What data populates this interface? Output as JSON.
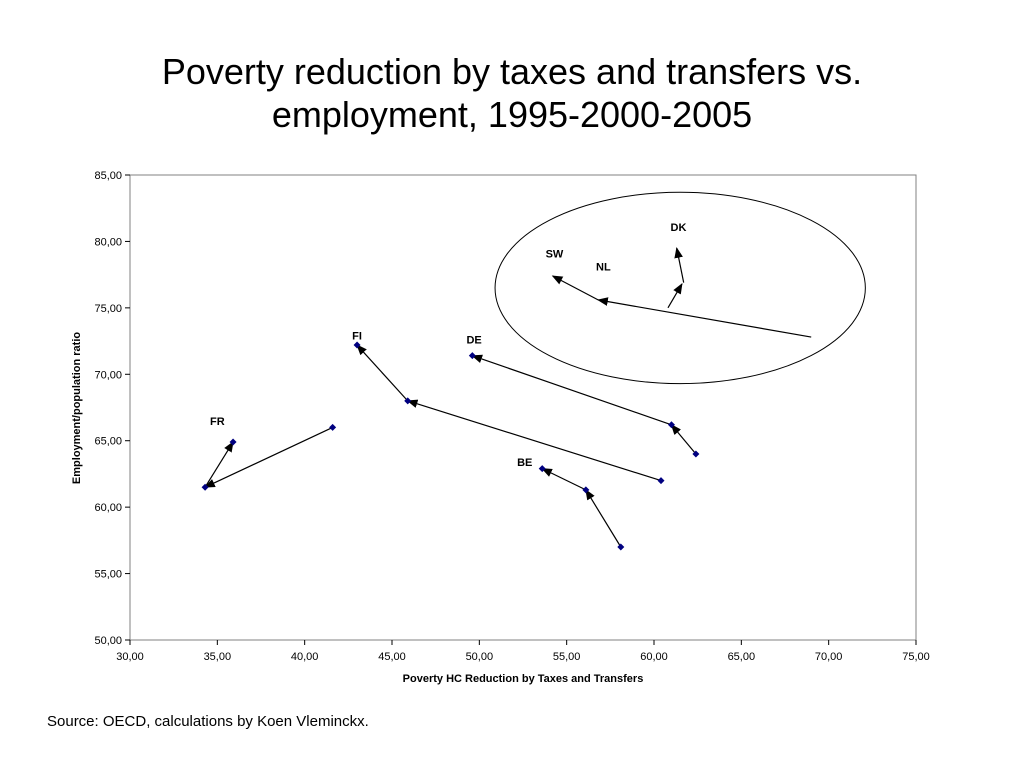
{
  "slide": {
    "title_line1": "Poverty reduction by taxes and transfers vs.",
    "title_line2": "employment, 1995-2000-2005",
    "source": "Source: OECD, calculations by Koen Vleminckx."
  },
  "chart_data": {
    "type": "scatter",
    "title": "Poverty reduction by taxes and transfers vs. employment, 1995-2000-2005",
    "xlabel": "Poverty HC Reduction by Taxes and Transfers",
    "ylabel": "Employment/population ratio",
    "xlim": [
      30,
      75
    ],
    "ylim": [
      50,
      85
    ],
    "x_ticks": [
      "30,00",
      "35,00",
      "40,00",
      "45,00",
      "50,00",
      "55,00",
      "60,00",
      "65,00",
      "70,00",
      "75,00"
    ],
    "y_ticks": [
      "50,00",
      "55,00",
      "60,00",
      "65,00",
      "70,00",
      "75,00",
      "80,00",
      "85,00"
    ],
    "grid": false,
    "marker_color": "#000080",
    "line_color": "#000000",
    "series": [
      {
        "name": "FR",
        "x": [
          41.6,
          34.3,
          35.9
        ],
        "y": [
          66.0,
          61.5,
          64.9
        ],
        "markers": true,
        "label_at": [
          35.0,
          66.2
        ]
      },
      {
        "name": "FI",
        "x": [
          60.4,
          45.9,
          43.0
        ],
        "y": [
          62.0,
          68.0,
          72.2
        ],
        "markers": true,
        "label_at": [
          43.0,
          72.6
        ]
      },
      {
        "name": "DE",
        "x": [
          62.4,
          61.0,
          49.6
        ],
        "y": [
          64.0,
          66.2,
          71.4
        ],
        "markers": true,
        "label_at": [
          49.7,
          72.3
        ]
      },
      {
        "name": "BE",
        "x": [
          58.1,
          56.1,
          53.6
        ],
        "y": [
          57.0,
          61.3,
          62.9
        ],
        "markers": true,
        "label_at": [
          52.6,
          63.1
        ]
      },
      {
        "name": "SW",
        "x": [
          69.0,
          56.8,
          54.2
        ],
        "y": [
          72.8,
          75.6,
          77.4
        ],
        "markers": false,
        "label_at": [
          54.3,
          78.8
        ]
      },
      {
        "name": "NL",
        "x": [
          60.8,
          61.6
        ],
        "y": [
          75.0,
          76.8
        ],
        "markers": false,
        "label_at": [
          57.1,
          77.8
        ]
      },
      {
        "name": "DK",
        "x": [
          61.7,
          61.3
        ],
        "y": [
          76.9,
          79.5
        ],
        "markers": false,
        "label_at": [
          61.4,
          80.8
        ]
      }
    ],
    "annotation": {
      "shape": "ellipse",
      "center": [
        61.5,
        76.5
      ],
      "radii": [
        10.6,
        7.2
      ]
    }
  }
}
